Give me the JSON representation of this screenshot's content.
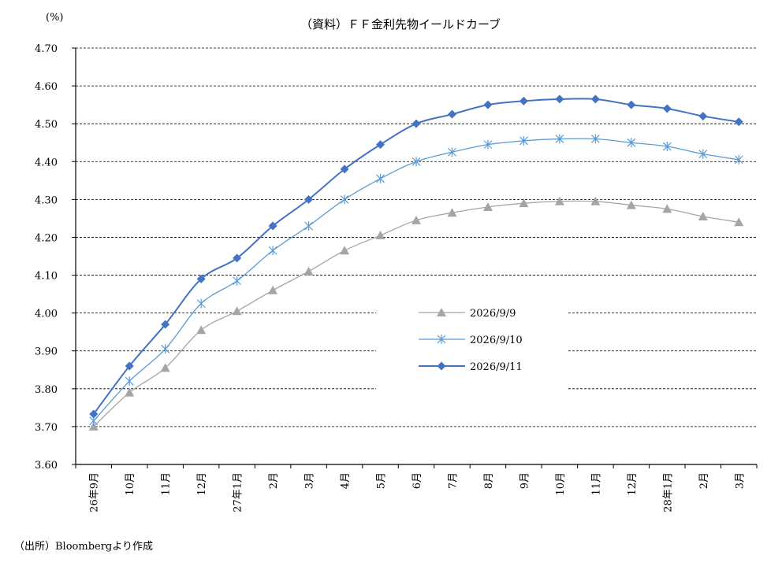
{
  "chart_data": {
    "type": "line",
    "title": "（資料）ＦＦ金利先物イールドカーブ",
    "ylabel": "(%)",
    "xlabel": "",
    "ylim": [
      3.6,
      4.7
    ],
    "yticks": [
      "3.60",
      "3.70",
      "3.80",
      "3.90",
      "4.00",
      "4.10",
      "4.20",
      "4.30",
      "4.40",
      "4.50",
      "4.60",
      "4.70"
    ],
    "grid": "horizontal-dashed",
    "legend_position": "center-right",
    "categories": [
      "26年9月",
      "10月",
      "11月",
      "12月",
      "27年1月",
      "2月",
      "3月",
      "4月",
      "5月",
      "6月",
      "7月",
      "8月",
      "9月",
      "10月",
      "11月",
      "12月",
      "28年1月",
      "2月",
      "3月"
    ],
    "series": [
      {
        "name": "2026/9/9",
        "marker": "triangle",
        "color": "#a5a5a5",
        "values": [
          3.7,
          3.79,
          3.855,
          3.955,
          4.005,
          4.06,
          4.11,
          4.165,
          4.205,
          4.245,
          4.265,
          4.28,
          4.29,
          4.295,
          4.295,
          4.285,
          4.275,
          4.255,
          4.24
        ]
      },
      {
        "name": "2026/9/10",
        "marker": "asterisk",
        "color": "#5b9bd5",
        "values": [
          3.715,
          3.82,
          3.905,
          4.025,
          4.085,
          4.165,
          4.23,
          4.3,
          4.355,
          4.4,
          4.425,
          4.445,
          4.455,
          4.46,
          4.46,
          4.45,
          4.44,
          4.42,
          4.405
        ]
      },
      {
        "name": "2026/9/11",
        "marker": "diamond",
        "color": "#4472c4",
        "values": [
          3.733,
          3.86,
          3.97,
          4.09,
          4.145,
          4.23,
          4.3,
          4.38,
          4.445,
          4.5,
          4.525,
          4.55,
          4.56,
          4.565,
          4.565,
          4.55,
          4.54,
          4.52,
          4.505
        ]
      }
    ]
  },
  "source_note": "（出所）Bloombergより作成"
}
